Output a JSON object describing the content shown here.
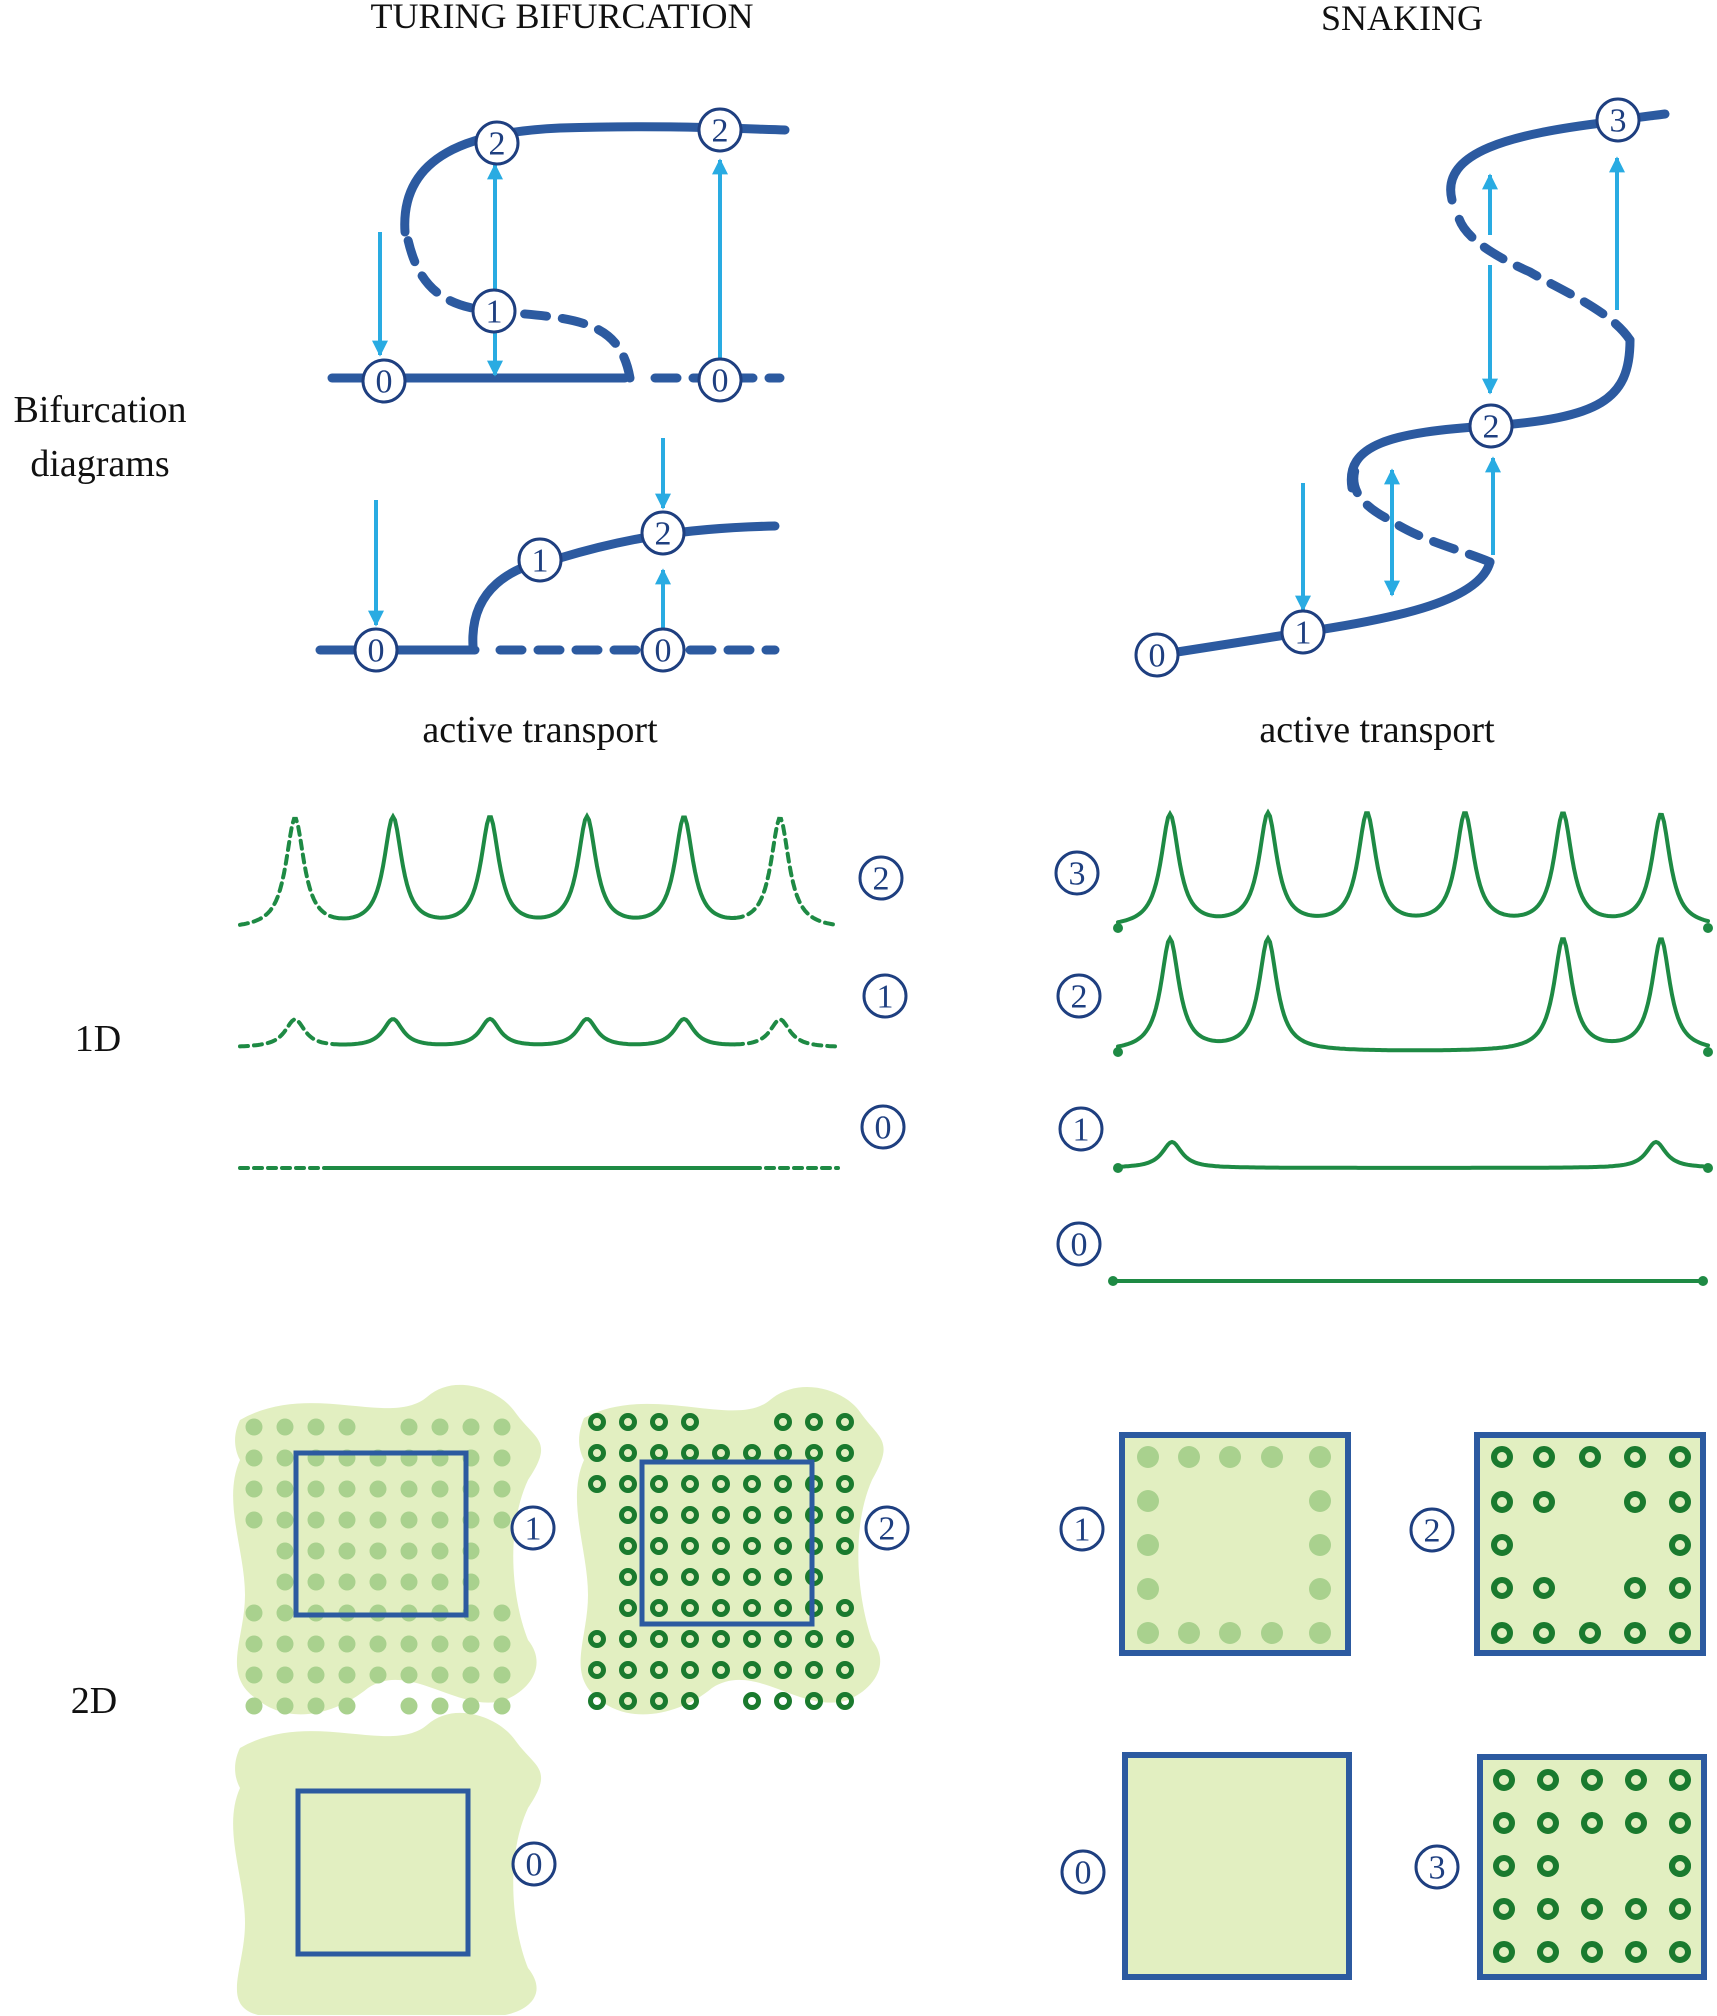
{
  "headers": {
    "left": "TURING BIFURCATION",
    "right": "SNAKING"
  },
  "row_labels": {
    "bifurcation_line1": "Bifurcation",
    "bifurcation_line2": "diagrams",
    "one_d": "1D",
    "two_d": "2D"
  },
  "captions": {
    "left": "active transport",
    "right": "active transport"
  },
  "state_labels": {
    "zero": "0",
    "one": "1",
    "two": "2",
    "three": "3"
  },
  "colors": {
    "branch": "#2c5aa0",
    "arrow": "#29abe2",
    "profile": "#1e8a44",
    "pattern_fill": "#e2efc1",
    "spot_faint": "#a9d18e",
    "spot_strong": "#1a7a2e",
    "label_ring": "#1e3f80"
  }
}
